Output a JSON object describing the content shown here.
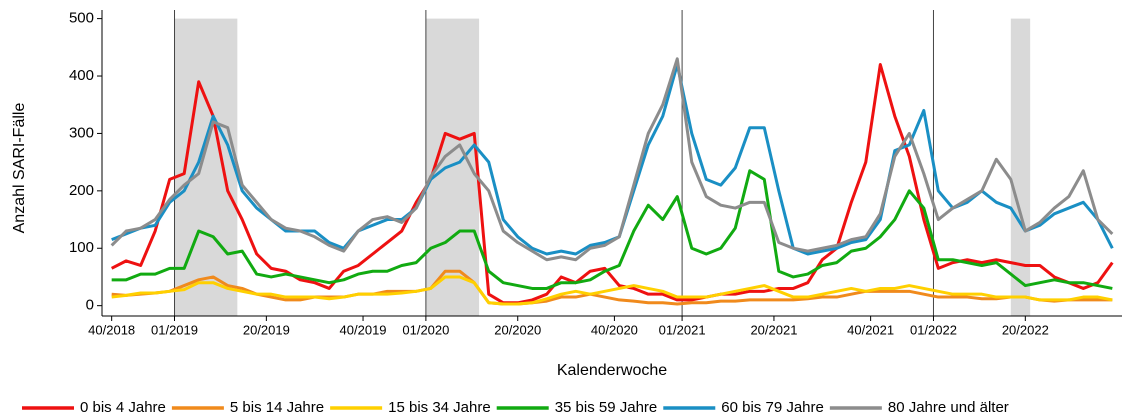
{
  "chart_data": {
    "type": "line",
    "x_label": "Kalenderwoche",
    "y_label": "Anzahl SARI-Fälle",
    "x": [
      0,
      3,
      6,
      9,
      12,
      15,
      18,
      21,
      24,
      27,
      30,
      33,
      36,
      39,
      42,
      45,
      48,
      51,
      54,
      57,
      60,
      63,
      66,
      69,
      72,
      75,
      78,
      81,
      84,
      87,
      90,
      93,
      96,
      99,
      102,
      105,
      108,
      111,
      114,
      117,
      120,
      123,
      126,
      129,
      132,
      135,
      138,
      141,
      144,
      147,
      150,
      153,
      156,
      159,
      162,
      165,
      168,
      171,
      174,
      177,
      180,
      183,
      186,
      189,
      192,
      195,
      198,
      201,
      204,
      207
    ],
    "xlim": [
      -2,
      209
    ],
    "xticks": [
      {
        "value": 0,
        "label": "40/2018"
      },
      {
        "value": 13,
        "label": "01/2019"
      },
      {
        "value": 32,
        "label": "20/2019"
      },
      {
        "value": 52,
        "label": "40/2019"
      },
      {
        "value": 65,
        "label": "01/2020"
      },
      {
        "value": 84,
        "label": "20/2020"
      },
      {
        "value": 104,
        "label": "40/2020"
      },
      {
        "value": 118,
        "label": "01/2021"
      },
      {
        "value": 137,
        "label": "20/2021"
      },
      {
        "value": 157,
        "label": "40/2021"
      },
      {
        "value": 170,
        "label": "01/2022"
      },
      {
        "value": 189,
        "label": "20/2022"
      }
    ],
    "ylim": [
      -18,
      515
    ],
    "yticks": [
      0,
      100,
      200,
      300,
      400,
      500
    ],
    "vlines": [
      13,
      65,
      118,
      170
    ],
    "shaded": [
      [
        13,
        26
      ],
      [
        65,
        76
      ],
      [
        186,
        190
      ]
    ],
    "shade_color": "#d9d9d9",
    "series": [
      {
        "name": "0 bis 4 Jahre",
        "color": "#ee1111",
        "values": [
          65,
          78,
          70,
          130,
          220,
          230,
          390,
          330,
          200,
          150,
          90,
          65,
          60,
          45,
          40,
          30,
          60,
          70,
          90,
          110,
          130,
          180,
          220,
          300,
          290,
          300,
          20,
          5,
          5,
          10,
          20,
          50,
          40,
          60,
          65,
          35,
          30,
          20,
          20,
          10,
          10,
          15,
          20,
          20,
          25,
          25,
          30,
          30,
          40,
          80,
          100,
          180,
          250,
          420,
          330,
          260,
          150,
          65,
          75,
          80,
          75,
          80,
          75,
          70,
          70,
          50,
          40,
          30,
          40,
          75
        ]
      },
      {
        "name": "5 bis 14 Jahre",
        "color": "#f08a1c",
        "values": [
          20,
          18,
          20,
          22,
          25,
          35,
          45,
          50,
          35,
          30,
          20,
          15,
          10,
          10,
          15,
          15,
          15,
          20,
          20,
          25,
          25,
          25,
          30,
          60,
          60,
          40,
          5,
          3,
          3,
          5,
          8,
          15,
          15,
          20,
          15,
          10,
          8,
          5,
          5,
          3,
          5,
          5,
          8,
          8,
          10,
          10,
          10,
          10,
          12,
          15,
          15,
          20,
          25,
          25,
          25,
          25,
          20,
          15,
          15,
          15,
          12,
          12,
          15,
          15,
          10,
          8,
          10,
          10,
          10,
          10
        ]
      },
      {
        "name": "15 bis 34 Jahre",
        "color": "#ffd000",
        "values": [
          15,
          18,
          22,
          22,
          25,
          28,
          40,
          40,
          30,
          25,
          20,
          20,
          15,
          15,
          15,
          12,
          15,
          20,
          20,
          20,
          22,
          25,
          30,
          50,
          50,
          40,
          5,
          3,
          3,
          5,
          12,
          20,
          25,
          20,
          25,
          30,
          35,
          30,
          25,
          15,
          15,
          15,
          20,
          25,
          30,
          35,
          25,
          15,
          15,
          20,
          25,
          30,
          25,
          30,
          30,
          35,
          30,
          25,
          20,
          20,
          20,
          15,
          15,
          15,
          10,
          10,
          10,
          15,
          15,
          10
        ]
      },
      {
        "name": "35 bis 59 Jahre",
        "color": "#11aa11",
        "values": [
          45,
          45,
          55,
          55,
          65,
          65,
          130,
          120,
          90,
          95,
          55,
          50,
          55,
          50,
          45,
          40,
          45,
          55,
          60,
          60,
          70,
          75,
          100,
          110,
          130,
          130,
          60,
          40,
          35,
          30,
          30,
          40,
          40,
          45,
          60,
          70,
          130,
          175,
          150,
          190,
          100,
          90,
          100,
          135,
          235,
          220,
          60,
          50,
          55,
          70,
          75,
          95,
          100,
          120,
          150,
          200,
          170,
          80,
          80,
          75,
          70,
          75,
          55,
          35,
          40,
          45,
          40,
          40,
          35,
          30
        ]
      },
      {
        "name": "60 bis 79 Jahre",
        "color": "#1a8fc4",
        "values": [
          115,
          125,
          135,
          140,
          180,
          200,
          250,
          330,
          280,
          200,
          170,
          150,
          130,
          130,
          130,
          110,
          100,
          130,
          140,
          150,
          150,
          170,
          220,
          240,
          250,
          280,
          250,
          150,
          120,
          100,
          90,
          95,
          90,
          105,
          110,
          120,
          200,
          280,
          330,
          420,
          300,
          220,
          210,
          240,
          310,
          310,
          200,
          100,
          90,
          95,
          100,
          110,
          115,
          150,
          270,
          280,
          340,
          200,
          170,
          180,
          200,
          180,
          170,
          130,
          140,
          160,
          170,
          180,
          150,
          100
        ]
      },
      {
        "name": "80 Jahre und älter",
        "color": "#8c8c8c",
        "values": [
          105,
          130,
          135,
          150,
          185,
          210,
          230,
          320,
          310,
          210,
          180,
          150,
          135,
          130,
          120,
          105,
          95,
          130,
          150,
          155,
          145,
          170,
          225,
          260,
          280,
          230,
          200,
          130,
          110,
          95,
          80,
          85,
          80,
          100,
          105,
          120,
          210,
          300,
          350,
          430,
          250,
          190,
          175,
          170,
          180,
          180,
          110,
          100,
          95,
          100,
          105,
          115,
          120,
          160,
          260,
          300,
          230,
          150,
          170,
          185,
          200,
          255,
          220,
          130,
          145,
          170,
          190,
          235,
          150,
          125
        ]
      }
    ]
  }
}
